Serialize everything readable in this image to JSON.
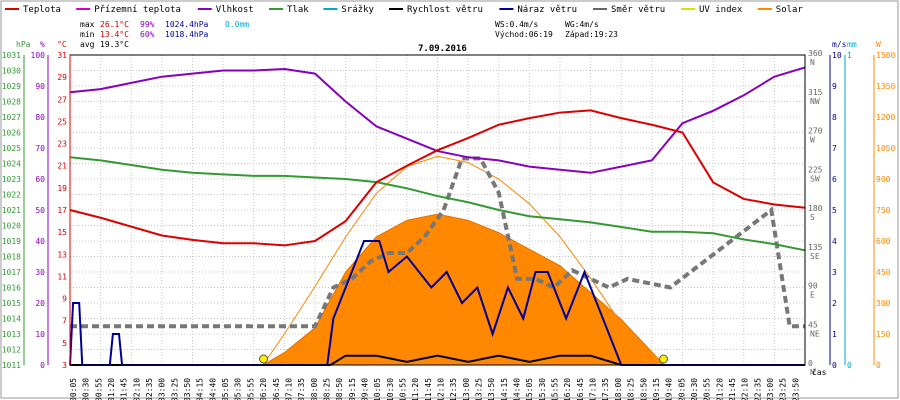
{
  "chart_data": {
    "type": "line",
    "title": "7.09.2016",
    "x_unit_label": "čas",
    "x_ticks": [
      "00:05",
      "00:30",
      "00:55",
      "01:20",
      "01:45",
      "02:10",
      "02:35",
      "03:00",
      "03:25",
      "03:50",
      "04:15",
      "04:40",
      "05:05",
      "05:30",
      "05:55",
      "06:20",
      "06:45",
      "07:10",
      "07:35",
      "08:00",
      "08:25",
      "08:50",
      "09:15",
      "09:40",
      "10:05",
      "10:30",
      "10:55",
      "11:20",
      "11:45",
      "12:10",
      "12:35",
      "13:00",
      "13:25",
      "13:50",
      "14:15",
      "14:40",
      "15:05",
      "15:30",
      "15:55",
      "16:20",
      "16:45",
      "17:10",
      "17:35",
      "18:00",
      "18:25",
      "18:50",
      "19:15",
      "19:40",
      "20:05",
      "20:30",
      "20:55",
      "21:20",
      "21:45",
      "22:10",
      "22:35",
      "23:00",
      "23:25",
      "23:50"
    ],
    "legend": [
      {
        "name": "Teplota",
        "color": "#dd0000"
      },
      {
        "name": "Přízemní teplota",
        "color": "#cc00cc"
      },
      {
        "name": "Vlhkost",
        "color": "#8800bb"
      },
      {
        "name": "Tlak",
        "color": "#339933"
      },
      {
        "name": "Srážky",
        "color": "#00aacc"
      },
      {
        "name": "Rychlost větru",
        "color": "#000000"
      },
      {
        "name": "Náraz větru",
        "color": "#000099"
      },
      {
        "name": "Směr větru",
        "color": "#666666"
      },
      {
        "name": "UV index",
        "color": "#dddd00"
      },
      {
        "name": "Solar",
        "color": "#ff8800"
      }
    ],
    "stats": {
      "max": {
        "label": "max",
        "temp": "26.1°C",
        "hum": "99%",
        "press": "1024.4hPa",
        "rain": "0.0mm"
      },
      "min": {
        "label": "min",
        "temp": "13.4°C",
        "hum": "60%",
        "press": "1018.4hPa"
      },
      "avg": {
        "label": "avg",
        "temp": "19.3°C"
      },
      "ws": "WS:0.4m/s",
      "wg": "WG:4m/s",
      "sunrise": "Východ:06:19",
      "sunset": "Západ:19:23"
    },
    "axes": {
      "hpa": {
        "label": "hPa",
        "ticks": [
          "1011",
          "1012",
          "1013",
          "1014",
          "1015",
          "1016",
          "1017",
          "1018",
          "1019",
          "1020",
          "1021",
          "1022",
          "1023",
          "1024",
          "1025",
          "1026",
          "1027",
          "1028",
          "1029",
          "1030",
          "1031"
        ],
        "range": [
          1011,
          1031
        ]
      },
      "pct": {
        "label": "%",
        "ticks": [
          "0",
          "10",
          "20",
          "30",
          "40",
          "50",
          "60",
          "70",
          "80",
          "90",
          "100"
        ],
        "range": [
          0,
          100
        ]
      },
      "celsius": {
        "label": "°C",
        "ticks": [
          "3",
          "5",
          "7",
          "9",
          "11",
          "13",
          "15",
          "17",
          "19",
          "21",
          "23",
          "25",
          "27",
          "29",
          "31"
        ],
        "range": [
          3,
          31
        ]
      },
      "dir": {
        "label": "°",
        "ticks": [
          "0",
          "45",
          "90",
          "135",
          "180",
          "225",
          "270",
          "315",
          "360"
        ],
        "compass": [
          "N",
          "NE",
          "E",
          "SE",
          "S",
          "SW",
          "W",
          "NW",
          "N"
        ],
        "range": [
          0,
          360
        ]
      },
      "ms": {
        "label": "m/s",
        "ticks": [
          "0",
          "1",
          "2",
          "3",
          "4",
          "5",
          "6",
          "7",
          "8",
          "9",
          "10"
        ],
        "range": [
          0,
          10
        ]
      },
      "mm": {
        "label": "mm",
        "ticks": [
          "0",
          "1"
        ]
      },
      "watt": {
        "label": "W",
        "ticks": [
          "0",
          "150",
          "300",
          "450",
          "600",
          "750",
          "900",
          "1050",
          "1200",
          "1350",
          "1500"
        ],
        "range": [
          0,
          1500
        ]
      }
    },
    "series": [
      {
        "name": "Teplota",
        "unit": "°C",
        "x": [
          0,
          1,
          2,
          3,
          4,
          5,
          6,
          7,
          8,
          9,
          10,
          11,
          12,
          13,
          14,
          15,
          16,
          17,
          18,
          19,
          20,
          21,
          22,
          23,
          24
        ],
        "values": [
          17.0,
          16.3,
          15.5,
          14.7,
          14.3,
          14.0,
          14.0,
          13.8,
          14.2,
          16.0,
          19.5,
          21.0,
          22.4,
          23.5,
          24.7,
          25.3,
          25.8,
          26.0,
          25.3,
          24.7,
          24.0,
          19.5,
          18.0,
          17.5,
          17.2
        ]
      },
      {
        "name": "Vlhkost",
        "unit": "%",
        "x": [
          0,
          1,
          2,
          3,
          4,
          5,
          6,
          7,
          8,
          9,
          10,
          11,
          12,
          13,
          14,
          15,
          16,
          17,
          18,
          19,
          20,
          21,
          22,
          23,
          24
        ],
        "values": [
          88,
          89,
          91,
          93,
          94,
          95,
          95,
          95.5,
          94,
          85,
          77,
          73,
          69,
          67,
          66,
          64,
          63,
          62,
          64,
          66,
          78,
          82,
          87,
          93,
          96
        ]
      },
      {
        "name": "Tlak",
        "unit": "hPa",
        "x": [
          0,
          1,
          2,
          3,
          4,
          5,
          6,
          7,
          8,
          9,
          10,
          11,
          12,
          13,
          14,
          15,
          16,
          17,
          18,
          19,
          20,
          21,
          22,
          23,
          24
        ],
        "values": [
          1024.4,
          1024.2,
          1023.9,
          1023.6,
          1023.4,
          1023.3,
          1023.2,
          1023.2,
          1023.1,
          1023.0,
          1022.8,
          1022.4,
          1021.9,
          1021.5,
          1021.0,
          1020.6,
          1020.4,
          1020.2,
          1019.9,
          1019.6,
          1019.6,
          1019.5,
          1019.1,
          1018.8,
          1018.4
        ]
      },
      {
        "name": "Rychlost větru",
        "unit": "m/s",
        "x": [
          0,
          8,
          8.5,
          9,
          10,
          11,
          12,
          13,
          14,
          15,
          16,
          17,
          18,
          19,
          20,
          24
        ],
        "values": [
          0,
          0,
          0,
          0.3,
          0.3,
          0.1,
          0.3,
          0.1,
          0.3,
          0.1,
          0.3,
          0.3,
          0,
          0,
          0,
          0
        ]
      },
      {
        "name": "Náraz větru",
        "unit": "m/s",
        "x": [
          0,
          0.1,
          0.3,
          0.4,
          1.3,
          1.4,
          1.6,
          1.7,
          8.4,
          8.6,
          9.2,
          9.6,
          10.1,
          10.4,
          11.0,
          11.8,
          12.3,
          12.8,
          13.3,
          13.8,
          14.3,
          14.8,
          15.2,
          15.6,
          16.2,
          16.8,
          17.4,
          18.0,
          24
        ],
        "values": [
          0,
          2,
          2,
          0,
          0,
          1,
          1,
          0,
          0,
          1.5,
          3,
          4,
          4,
          3,
          3.5,
          2.5,
          3,
          2,
          2.5,
          1,
          2.5,
          1.5,
          3,
          3,
          1.5,
          3,
          1.5,
          0,
          0
        ]
      },
      {
        "name": "Směr větru",
        "unit": "°",
        "x": [
          0,
          8,
          8.6,
          9.2,
          9.8,
          10.4,
          11,
          11.6,
          12.2,
          12.8,
          13.4,
          14,
          14.6,
          15.2,
          15.8,
          16.4,
          17,
          17.6,
          18.2,
          19.6,
          22.9,
          23.5,
          24
        ],
        "values": [
          45,
          45,
          90,
          100,
          120,
          130,
          130,
          150,
          180,
          240,
          240,
          200,
          100,
          100,
          90,
          110,
          100,
          90,
          100,
          90,
          180,
          45,
          45
        ]
      },
      {
        "name": "Solar",
        "unit": "W",
        "x": [
          6.3,
          7,
          8,
          9,
          10,
          11,
          12,
          13,
          14,
          15,
          16,
          17,
          18,
          19.4
        ],
        "values": [
          0,
          60,
          180,
          450,
          620,
          700,
          730,
          700,
          640,
          560,
          480,
          350,
          220,
          0
        ]
      },
      {
        "name": "Solar max",
        "unit": "W",
        "x": [
          6.3,
          7,
          8,
          9,
          10,
          11,
          12,
          13,
          14,
          15,
          16,
          17,
          18,
          19.4
        ],
        "values": [
          0,
          150,
          380,
          620,
          830,
          960,
          1010,
          980,
          900,
          780,
          620,
          420,
          200,
          0
        ]
      }
    ],
    "markers": [
      {
        "name": "Východ",
        "x": 6.32
      },
      {
        "name": "Západ",
        "x": 19.38
      }
    ],
    "grid": true
  }
}
